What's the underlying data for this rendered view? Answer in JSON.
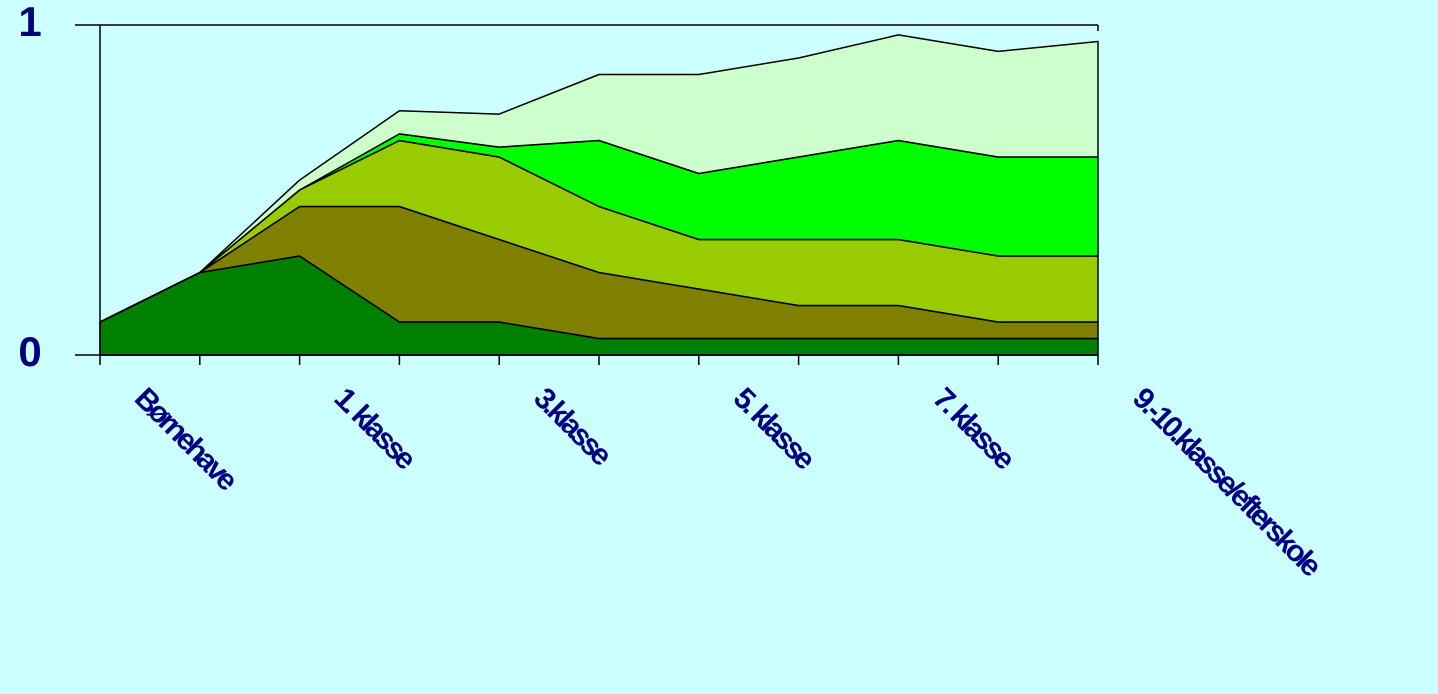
{
  "chart_data": {
    "type": "stacked_area",
    "categories": [
      "Børnehave",
      null,
      "1. klasse",
      null,
      "3.klasse",
      null,
      "5. klasse",
      null,
      "7. klasse",
      null,
      "9.-10.klasse/efterskole"
    ],
    "series": [
      {
        "color": "#008000",
        "values": [
          0.1,
          0.25,
          0.3,
          0.1,
          0.1,
          0.05,
          0.05,
          0.05,
          0.05,
          0.05,
          0.05
        ]
      },
      {
        "color": "#808000",
        "values": [
          0,
          0,
          0.15,
          0.35,
          0.25,
          0.2,
          0.15,
          0.1,
          0.1,
          0.05,
          0.05
        ]
      },
      {
        "color": "#99CC00",
        "values": [
          0,
          0,
          0.05,
          0.2,
          0.25,
          0.2,
          0.15,
          0.2,
          0.2,
          0.2,
          0.2
        ]
      },
      {
        "color": "#00FF00",
        "values": [
          0,
          0,
          0,
          0.02,
          0.03,
          0.2,
          0.2,
          0.25,
          0.3,
          0.3,
          0.3
        ]
      },
      {
        "color": "#CCFFCC",
        "values": [
          0,
          0,
          0.03,
          0.07,
          0.1,
          0.2,
          0.3,
          0.3,
          0.32,
          0.32,
          0.35
        ]
      }
    ],
    "ylim": [
      0,
      1
    ],
    "yticks": [
      0,
      1
    ],
    "grid": true
  }
}
